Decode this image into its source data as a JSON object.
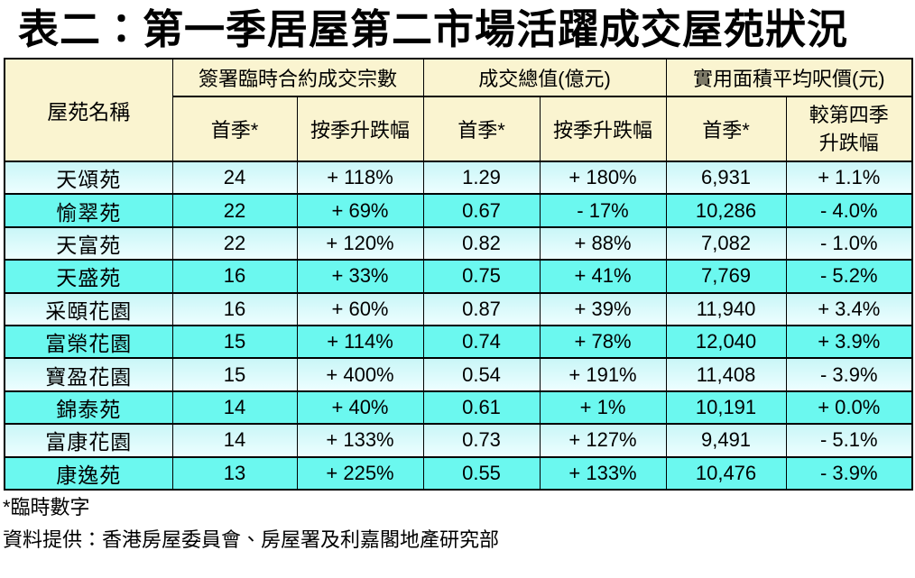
{
  "title": "表二：第一季居屋第二市場活躍成交屋苑狀況",
  "header": {
    "estate": "屋苑名稱",
    "groups": [
      "簽署臨時合約成交宗數",
      "成交總值(億元)",
      "實用面積平均呎價(元)"
    ],
    "sub": [
      "首季*",
      "按季升跌幅",
      "首季*",
      "按季升跌幅",
      "首季*"
    ],
    "sub_last": [
      "較第四季",
      "升跌幅"
    ]
  },
  "chart_data": {
    "type": "table",
    "title": "表二：第一季居屋第二市場活躍成交屋苑狀況",
    "column_groups": [
      "屋苑名稱",
      "簽署臨時合約成交宗數",
      "成交總值(億元)",
      "實用面積平均呎價(元)"
    ],
    "columns": [
      "屋苑名稱",
      "簽署臨時合約成交宗數 首季*",
      "簽署臨時合約成交宗數 按季升跌幅",
      "成交總值(億元) 首季*",
      "成交總值(億元) 按季升跌幅",
      "實用面積平均呎價(元) 首季*",
      "實用面積平均呎價(元) 較第四季升跌幅"
    ],
    "rows": [
      [
        "天頌苑",
        "24",
        "+ 118%",
        "1.29",
        "+ 180%",
        "6,931",
        "+ 1.1%"
      ],
      [
        "愉翠苑",
        "22",
        "+ 69%",
        "0.67",
        "- 17%",
        "10,286",
        "- 4.0%"
      ],
      [
        "天富苑",
        "22",
        "+ 120%",
        "0.82",
        "+ 88%",
        "7,082",
        "- 1.0%"
      ],
      [
        "天盛苑",
        "16",
        "+ 33%",
        "0.75",
        "+ 41%",
        "7,769",
        "- 5.2%"
      ],
      [
        "采頤花園",
        "16",
        "+ 60%",
        "0.87",
        "+ 39%",
        "11,940",
        "+ 3.4%"
      ],
      [
        "富榮花園",
        "15",
        "+ 114%",
        "0.74",
        "+ 78%",
        "12,040",
        "+ 3.9%"
      ],
      [
        "寶盈花園",
        "15",
        "+ 400%",
        "0.54",
        "+ 191%",
        "11,408",
        "- 3.9%"
      ],
      [
        "錦泰苑",
        "14",
        "+ 40%",
        "0.61",
        "+ 1%",
        "10,191",
        "+ 0.0%"
      ],
      [
        "富康花園",
        "14",
        "+ 133%",
        "0.73",
        "+ 127%",
        "9,491",
        "- 5.1%"
      ],
      [
        "康逸苑",
        "13",
        "+ 225%",
        "0.55",
        "+ 133%",
        "10,476",
        "- 3.9%"
      ]
    ]
  },
  "footnotes": {
    "provisional": "*臨時數字",
    "source": "資料提供：香港房屋委員會、房屋署及利嘉閣地產研究部"
  },
  "colors": {
    "header_bg": "#FAF4D0",
    "row_even": "#6BF8EF",
    "row_odd_top": "#C9F6F7",
    "row_odd_bottom": "#EDFEFF",
    "border": "#000000"
  }
}
